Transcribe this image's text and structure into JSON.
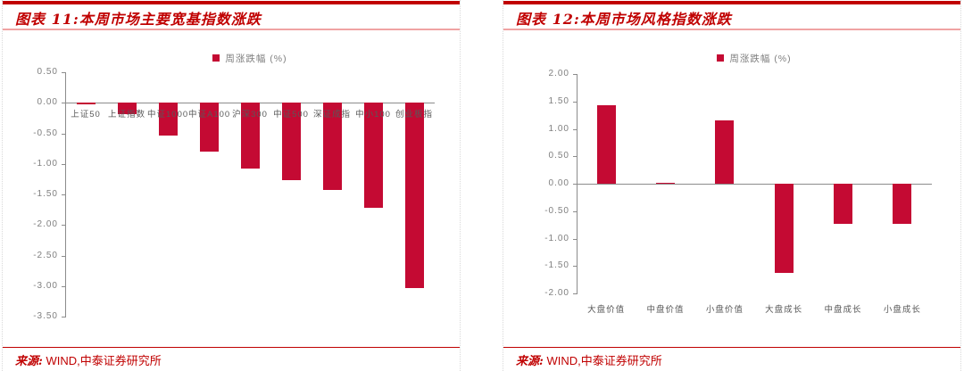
{
  "accent_color": "#C00000",
  "bar_color": "#C40A33",
  "panels": [
    {
      "title": "图表 11:本周市场主要宽基指数涨跌",
      "legend_label": "周涨跌幅 (%)",
      "source_label": "来源:",
      "source_text": "WIND,中泰证券研究所"
    },
    {
      "title": "图表 12:本周市场风格指数涨跌",
      "legend_label": "周涨跌幅 (%)",
      "source_label": "来源:",
      "source_text": "WIND,中泰证券研究所"
    }
  ],
  "chart_data": [
    {
      "type": "bar",
      "title": "本周市场主要宽基指数涨跌",
      "legend": [
        "周涨跌幅 (%)"
      ],
      "categories": [
        "上证50",
        "上证指数",
        "中证1000",
        "中证A100",
        "沪深300",
        "中证500",
        "深证成指",
        "中小100",
        "创业板指"
      ],
      "values": [
        -0.03,
        -0.18,
        -0.54,
        -0.8,
        -1.08,
        -1.27,
        -1.43,
        -1.72,
        -3.03
      ],
      "xlabel": "",
      "ylabel": "",
      "ylim": [
        -3.5,
        0.5
      ],
      "ytick_step": 0.5,
      "grid": false,
      "legend_position": "top",
      "category_label_position": "below_zero_axis",
      "bar_color": "#C40A33"
    },
    {
      "type": "bar",
      "title": "本周市场风格指数涨跌",
      "legend": [
        "周涨跌幅 (%)"
      ],
      "categories": [
        "大盘价值",
        "中盘价值",
        "小盘价值",
        "大盘成长",
        "中盘成长",
        "小盘成长"
      ],
      "values": [
        1.43,
        0.02,
        1.15,
        -1.63,
        -0.73,
        -0.73
      ],
      "xlabel": "",
      "ylabel": "",
      "ylim": [
        -2.0,
        2.0
      ],
      "ytick_step": 0.5,
      "grid": false,
      "legend_position": "top",
      "category_label_position": "bottom",
      "bar_color": "#C40A33"
    }
  ]
}
